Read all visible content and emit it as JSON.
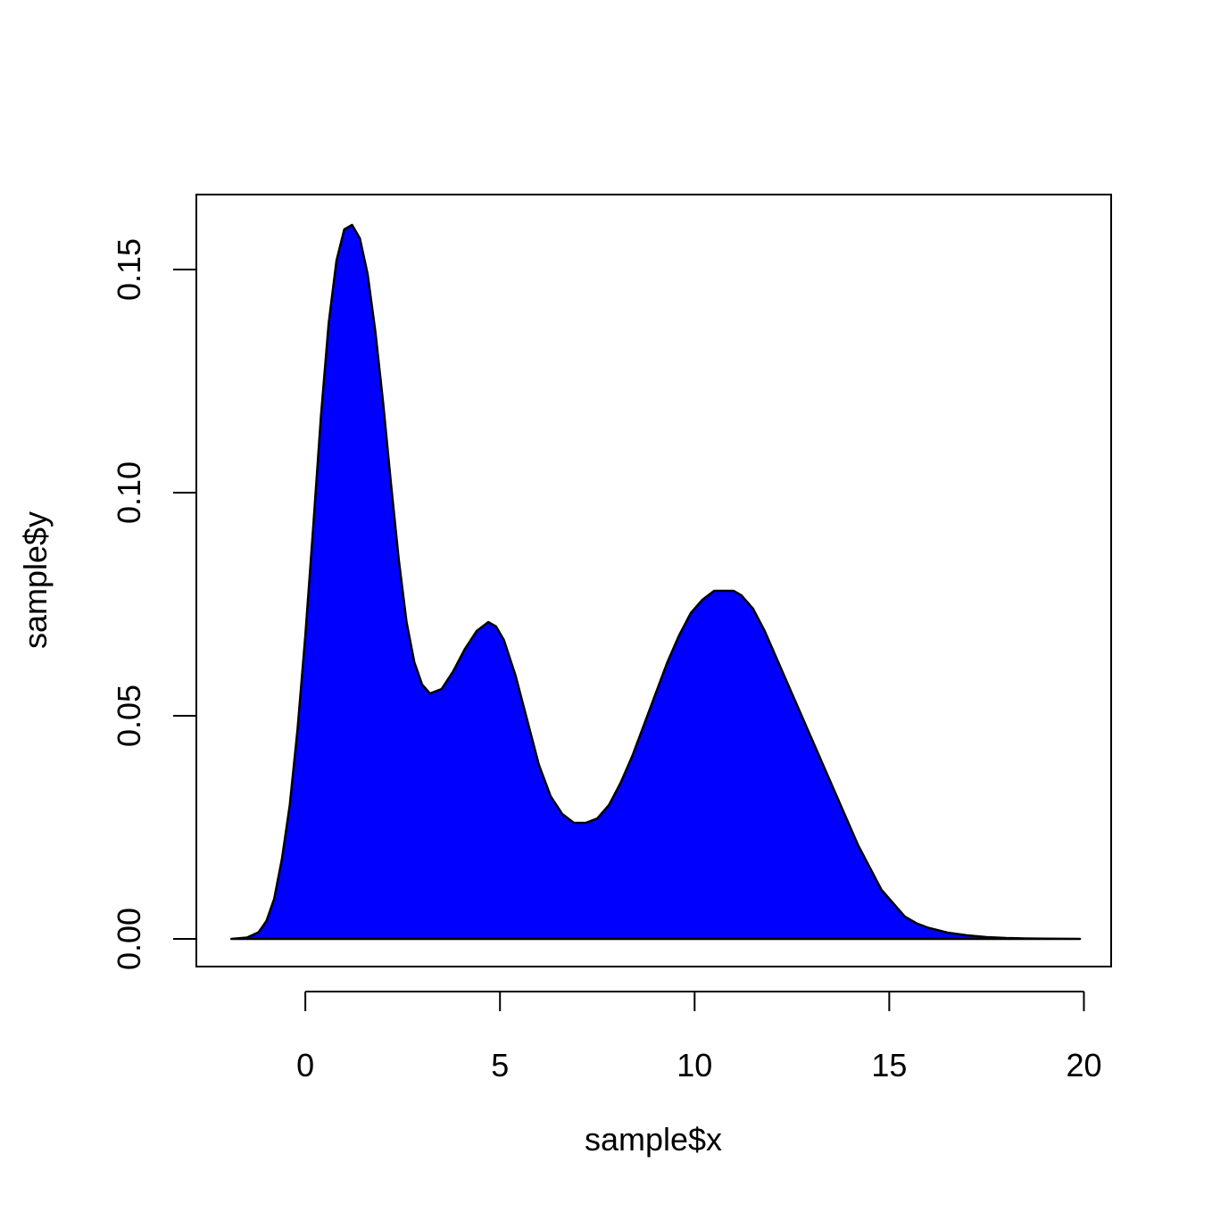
{
  "chart_data": {
    "type": "area",
    "title": "",
    "xlabel": "sample$x",
    "ylabel": "sample$y",
    "xlim": [
      -2.8,
      20.7
    ],
    "ylim": [
      -0.0062,
      0.1668
    ],
    "x_ticks": [
      0,
      5,
      10,
      15,
      20
    ],
    "x_tick_labels": [
      "0",
      "5",
      "10",
      "15",
      "20"
    ],
    "y_ticks": [
      0.0,
      0.05,
      0.1,
      0.15
    ],
    "y_tick_labels": [
      "0.00",
      "0.05",
      "0.10",
      "0.15"
    ],
    "grid": false,
    "legend": "none",
    "fill_color": "#0000ff",
    "line_color": "#000000",
    "series": [
      {
        "x": [
          -1.9,
          -1.5,
          -1.2,
          -1.0,
          -0.8,
          -0.6,
          -0.4,
          -0.2,
          0.0,
          0.2,
          0.4,
          0.6,
          0.8,
          1.0,
          1.2,
          1.4,
          1.6,
          1.8,
          2.0,
          2.2,
          2.4,
          2.6,
          2.8,
          3.0,
          3.2,
          3.5,
          3.8,
          4.1,
          4.4,
          4.7,
          4.9,
          5.1,
          5.4,
          5.7,
          6.0,
          6.3,
          6.6,
          6.9,
          7.2,
          7.5,
          7.8,
          8.1,
          8.4,
          8.7,
          9.0,
          9.3,
          9.6,
          9.9,
          10.2,
          10.5,
          10.8,
          11.0,
          11.2,
          11.5,
          11.8,
          12.1,
          12.4,
          12.7,
          13.0,
          13.3,
          13.6,
          13.9,
          14.2,
          14.5,
          14.8,
          15.1,
          15.4,
          15.7,
          16.0,
          16.5,
          17.0,
          17.5,
          18.0,
          18.5,
          19.0,
          19.5,
          19.9
        ],
        "y": [
          0.0,
          0.0003,
          0.0015,
          0.004,
          0.009,
          0.018,
          0.03,
          0.047,
          0.068,
          0.092,
          0.117,
          0.138,
          0.152,
          0.159,
          0.16,
          0.157,
          0.149,
          0.136,
          0.12,
          0.102,
          0.085,
          0.071,
          0.062,
          0.057,
          0.055,
          0.056,
          0.06,
          0.065,
          0.069,
          0.071,
          0.07,
          0.067,
          0.059,
          0.049,
          0.039,
          0.032,
          0.028,
          0.026,
          0.026,
          0.027,
          0.03,
          0.035,
          0.041,
          0.048,
          0.055,
          0.062,
          0.068,
          0.073,
          0.076,
          0.078,
          0.078,
          0.078,
          0.077,
          0.074,
          0.069,
          0.063,
          0.057,
          0.051,
          0.045,
          0.039,
          0.033,
          0.027,
          0.021,
          0.016,
          0.011,
          0.008,
          0.005,
          0.0035,
          0.0025,
          0.0014,
          0.0008,
          0.0004,
          0.0002,
          0.0001,
          5e-05,
          2e-05,
          0.0
        ]
      }
    ]
  }
}
